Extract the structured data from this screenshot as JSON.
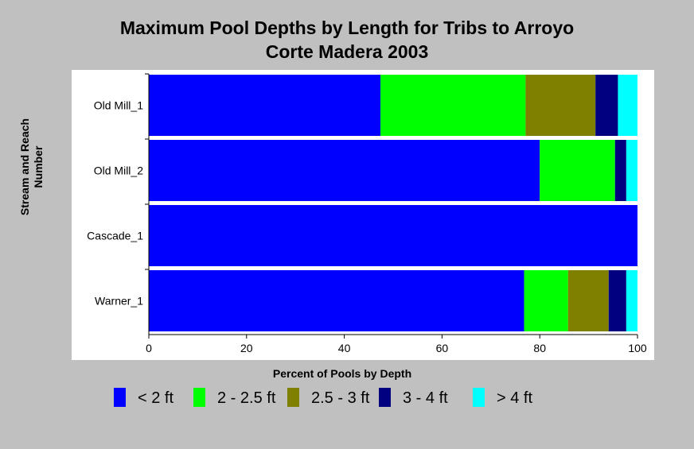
{
  "chart_data": {
    "type": "bar",
    "orientation": "horizontal",
    "stacked": true,
    "title_line1": "Maximum Pool Depths by Length for Tribs to Arroyo",
    "title_line2": "Corte Madera 2003",
    "xlabel": "Percent of Pools by Depth",
    "ylabel_line1": "Stream and Reach",
    "ylabel_line2": "Number",
    "xlim": [
      0,
      100
    ],
    "xticks": [
      "0",
      "20",
      "40",
      "60",
      "80",
      "100"
    ],
    "categories": [
      "Old Mill_1",
      "Old Mill_2",
      "Cascade_1",
      "Warner_1"
    ],
    "series": [
      {
        "name": "< 2 ft",
        "color": "#0000ff",
        "values": [
          47.4,
          80.0,
          100.0,
          76.8
        ]
      },
      {
        "name": "2 - 2.5 ft",
        "color": "#00ff00",
        "values": [
          29.7,
          15.4,
          0.0,
          9.0
        ]
      },
      {
        "name": "2.5 - 3 ft",
        "color": "#808000",
        "values": [
          14.3,
          0.0,
          0.0,
          8.3
        ]
      },
      {
        "name": "3 - 4 ft",
        "color": "#000080",
        "values": [
          4.6,
          2.3,
          0.0,
          3.6
        ]
      },
      {
        "name": "> 4 ft",
        "color": "#00ffff",
        "values": [
          4.0,
          2.3,
          0.0,
          2.3
        ]
      }
    ],
    "legend_position": "bottom",
    "grid": false
  }
}
